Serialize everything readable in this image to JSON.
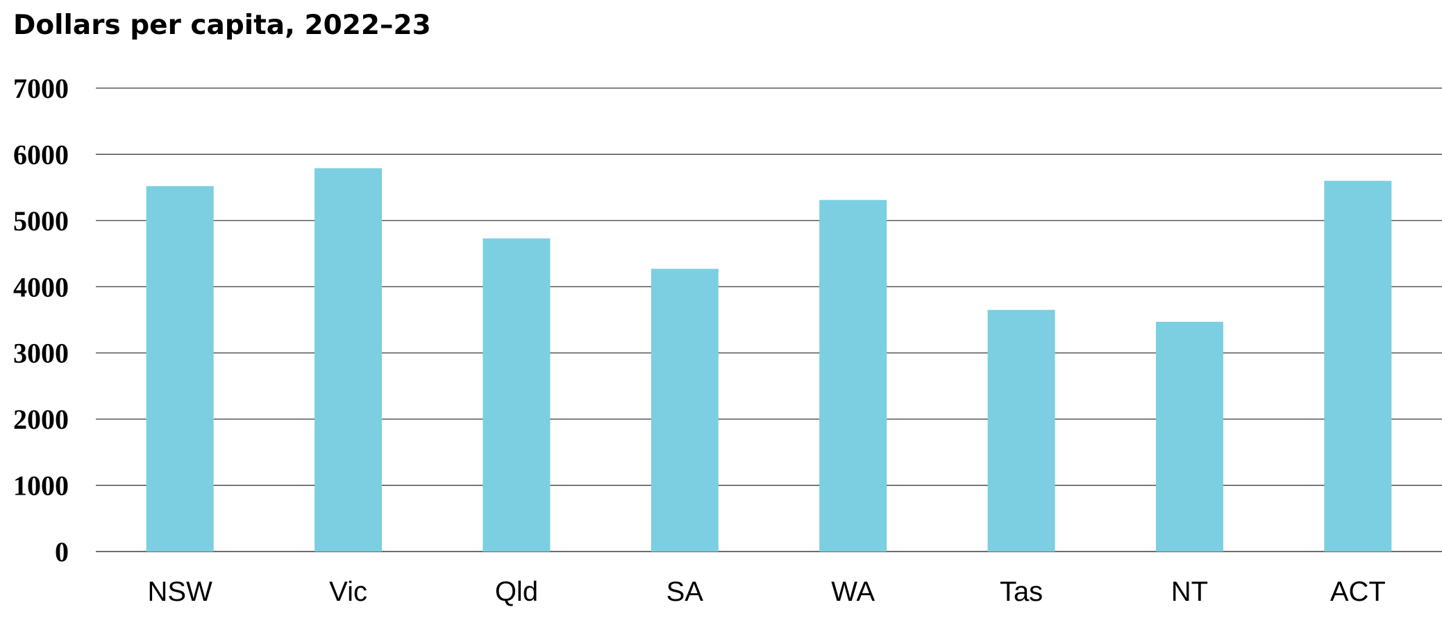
{
  "chart_data": {
    "type": "bar",
    "title": "Dollars per capita, 2022–23",
    "xlabel": "",
    "ylabel": "",
    "categories": [
      "NSW",
      "Vic",
      "Qld",
      "SA",
      "WA",
      "Tas",
      "NT",
      "ACT"
    ],
    "values": [
      5520,
      5790,
      4730,
      4270,
      5310,
      3650,
      3470,
      5600
    ],
    "ylim": [
      0,
      7000
    ],
    "yticks": [
      "0",
      "1000",
      "2000",
      "3000",
      "4000",
      "5000",
      "6000",
      "7000"
    ],
    "grid": true,
    "legend": "none",
    "colors": {
      "bar": "#7bcfe1",
      "grid": "#3a3a3a",
      "text": "#000000"
    }
  }
}
